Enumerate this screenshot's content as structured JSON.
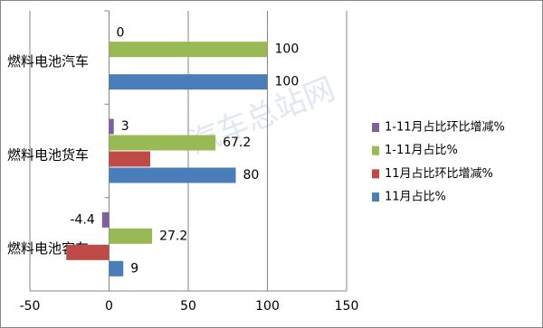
{
  "chart_data": {
    "type": "bar",
    "orientation": "horizontal",
    "categories": [
      "燃料电池汽车",
      "燃料电池货车",
      "燃料电池客车"
    ],
    "series": [
      {
        "name": "11月占比%",
        "color": "#4a7ebb",
        "values": [
          100,
          80,
          9
        ],
        "labels": true
      },
      {
        "name": "11月占比环比增减%",
        "color": "#be4b48",
        "values": [
          null,
          26,
          -27
        ],
        "labels": false
      },
      {
        "name": "1-11月占比%",
        "color": "#98b954",
        "values": [
          100,
          67.2,
          27.2
        ],
        "labels": true
      },
      {
        "name": "1-11月占比环比增减%",
        "color": "#7d60a0",
        "values": [
          0,
          3,
          -4.4
        ],
        "labels": true
      }
    ],
    "xlim": [
      -50,
      150
    ],
    "xticks": [
      -50,
      0,
      50,
      100,
      150
    ],
    "grid": true,
    "legend": "right",
    "watermark": "汽车总站网"
  }
}
